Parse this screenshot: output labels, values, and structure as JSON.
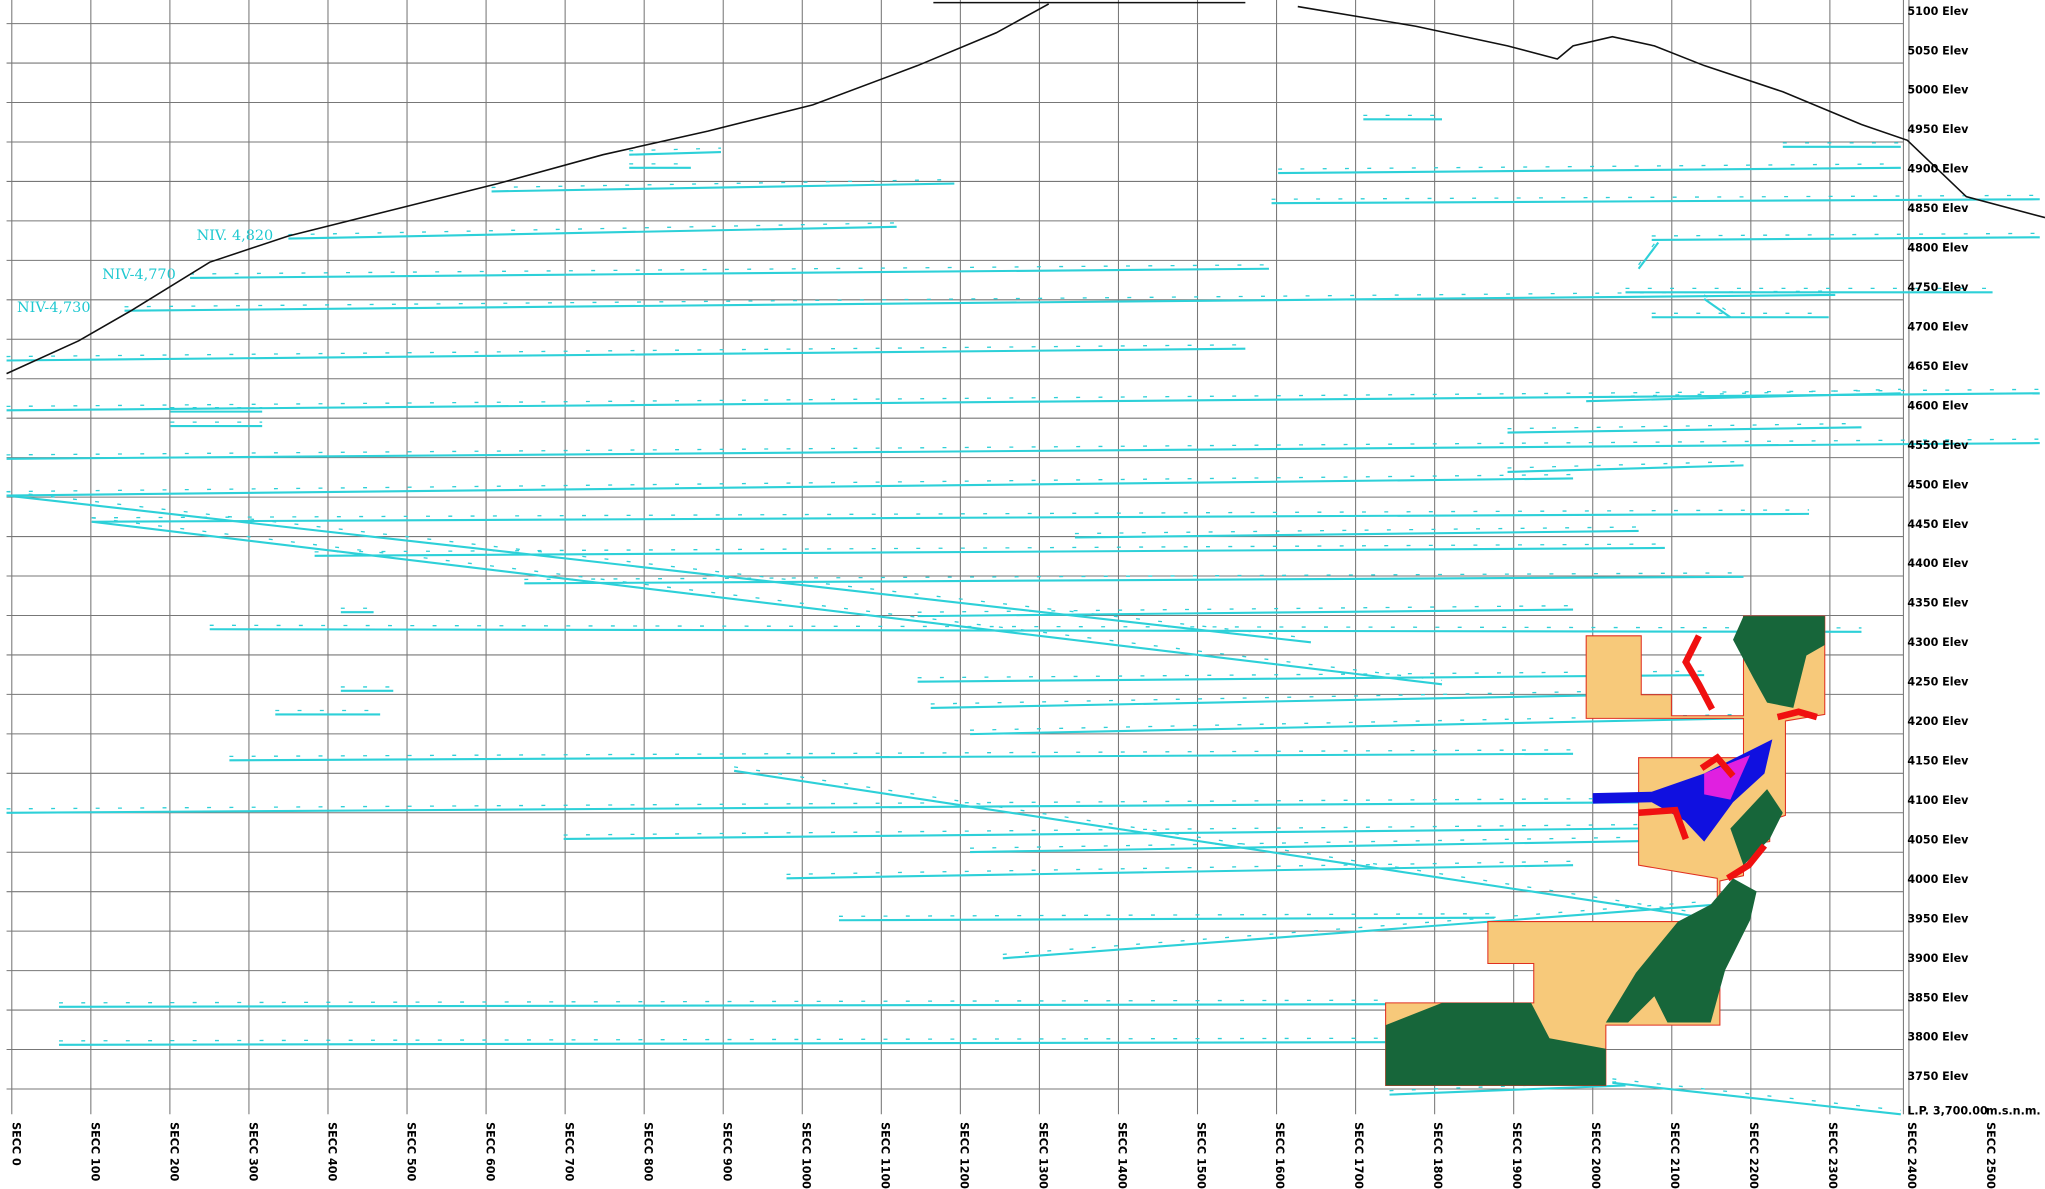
{
  "sections": [
    "SECC 0",
    "SECC 100",
    "SECC 200",
    "SECC 300",
    "SECC 400",
    "SECC 500",
    "SECC 600",
    "SECC 700",
    "SECC 800",
    "SECC 900",
    "SECC 1000",
    "SECC 1100",
    "SECC 1200",
    "SECC 1300",
    "SECC 1400",
    "SECC 1500",
    "SECC 1600",
    "SECC 1700",
    "SECC 1800",
    "SECC 1900",
    "SECC 2000",
    "SECC 2100",
    "SECC 2200",
    "SECC 2300",
    "SECC 2400",
    "SECC 2500"
  ],
  "elevations": [
    "5100 Elev",
    "5050 Elev",
    "5000 Elev",
    "4950 Elev",
    "4900 Elev",
    "4850 Elev",
    "4800 Elev",
    "4750 Elev",
    "4700 Elev",
    "4650 Elev",
    "4600 Elev",
    "4550 Elev",
    "4500 Elev",
    "4450 Elev",
    "4400 Elev",
    "4350 Elev",
    "4300 Elev",
    "4250 Elev",
    "4200 Elev",
    "4150 Elev",
    "4100 Elev",
    "4050 Elev",
    "4000 Elev",
    "3950 Elev",
    "3900 Elev",
    "3850 Elev",
    "3800 Elev",
    "3750 Elev"
  ],
  "datum": {
    "label": "L.P. 3,700.00",
    "unit": "m.s.n.m."
  },
  "levels": [
    "NIV. 4,820",
    "NIV-4,770",
    "NIV-4,730"
  ]
}
